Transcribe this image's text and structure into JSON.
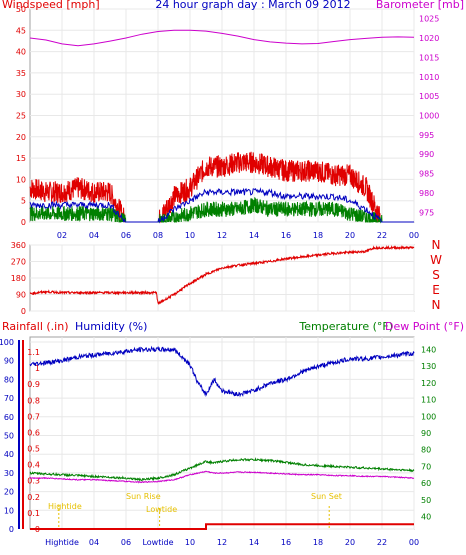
{
  "colors": {
    "wind": "#e00000",
    "wind_avg": "#0000c0",
    "wind_min": "#008000",
    "barometer": "#cc00cc",
    "direction": "#e00000",
    "rain": "#e00000",
    "humidity": "#0000c0",
    "temperature": "#008000",
    "dewpoint": "#cc00cc",
    "tide_text": "#e6c000",
    "axis_text": "#0000c0"
  },
  "chart_data": [
    {
      "type": "line",
      "title": "24 hour graph day : March 09 2012",
      "ylabel_left": "Windspeed [mph]",
      "ylabel_right": "Barometer [mb]",
      "x_ticks": [
        "02",
        "04",
        "06",
        "08",
        "10",
        "12",
        "14",
        "16",
        "18",
        "20",
        "22",
        "00"
      ],
      "y_left_ticks": [
        "0",
        "5",
        "10",
        "15",
        "20",
        "25",
        "30",
        "35",
        "40",
        "45",
        "50"
      ],
      "y_right_ticks": [
        "975",
        "980",
        "985",
        "990",
        "995",
        "1000",
        "1005",
        "1010",
        "1015",
        "1020",
        "1025"
      ],
      "ylim_left": [
        0,
        50
      ],
      "ylim_right": [
        972.5,
        1027.5
      ],
      "x": [
        0,
        1,
        2,
        3,
        4,
        5,
        6,
        7,
        8,
        9,
        10,
        11,
        12,
        13,
        14,
        15,
        16,
        17,
        18,
        19,
        20,
        21,
        22,
        23,
        24
      ],
      "series": [
        {
          "key": "gust",
          "values": [
            8,
            7,
            7,
            8,
            7,
            7,
            0,
            0,
            0,
            6,
            8,
            13,
            13,
            14,
            14,
            13,
            12,
            12,
            12,
            11,
            11,
            8,
            0,
            0,
            0
          ]
        },
        {
          "key": "average",
          "values": [
            4,
            4,
            4,
            4,
            4,
            4,
            0,
            0,
            0,
            3,
            5,
            7,
            7,
            7,
            7,
            7,
            6,
            6,
            6,
            6,
            5,
            3,
            0,
            0,
            0
          ]
        },
        {
          "key": "minimum",
          "values": [
            2,
            2,
            2,
            2,
            2,
            2,
            0,
            0,
            0,
            1,
            2,
            3,
            3,
            3,
            4,
            3,
            3,
            3,
            3,
            3,
            2,
            1,
            0,
            0,
            0
          ]
        },
        {
          "key": "barometer",
          "values": [
            1020,
            1019.5,
            1018.5,
            1018,
            1018.5,
            1019.2,
            1020,
            1021,
            1021.7,
            1022,
            1022,
            1021.8,
            1021.2,
            1020.5,
            1019.6,
            1019,
            1018.7,
            1018.5,
            1018.6,
            1019.1,
            1019.6,
            1019.9,
            1020.2,
            1020.3,
            1020.2
          ]
        }
      ]
    },
    {
      "type": "line",
      "ylabel_right": "N W S E N",
      "y_ticks": [
        "0",
        "90",
        "180",
        "270",
        "360"
      ],
      "ylim": [
        0,
        360
      ],
      "compass": [
        "N",
        "W",
        "S",
        "E",
        "N"
      ],
      "x": [
        0,
        1,
        2,
        3,
        4,
        5,
        6,
        7,
        7.9,
        8,
        9,
        10,
        11,
        12,
        13,
        14,
        15,
        16,
        17,
        18,
        19,
        20,
        21,
        21.5,
        22,
        23,
        24
      ],
      "series": [
        {
          "key": "direction",
          "values": [
            95,
            105,
            100,
            100,
            100,
            100,
            100,
            100,
            100,
            40,
            90,
            150,
            200,
            235,
            250,
            260,
            270,
            285,
            295,
            305,
            315,
            320,
            325,
            345,
            345,
            345,
            345
          ]
        }
      ]
    },
    {
      "type": "line",
      "ylabel_left_1": "Rainfall (.in)",
      "ylabel_left_2": "Humidity (%)",
      "ylabel_right_1": "Temperature (°F)",
      "ylabel_right_2": "Dew Point (°F)",
      "x_ticks": [
        "Hightide",
        "04",
        "06",
        "Lowtide",
        "10",
        "12",
        "14",
        "16",
        "18",
        "20",
        "22",
        "00"
      ],
      "humidity_ticks": [
        "0",
        "10",
        "20",
        "30",
        "40",
        "50",
        "60",
        "70",
        "80",
        "90",
        "100"
      ],
      "rain_ticks": [
        "0",
        "0.1",
        "0.2",
        "0.3",
        "0.4",
        "0.5",
        "0.6",
        "0.7",
        "0.8",
        "0.9",
        "1",
        "1.1"
      ],
      "temp_ticks": [
        "40",
        "50",
        "60",
        "70",
        "80",
        "90",
        "100",
        "110",
        "120",
        "130",
        "140"
      ],
      "ylim_humidity": [
        0,
        100
      ],
      "ylim_temperature": [
        32.5,
        147.5
      ],
      "annotations": [
        "Hightide",
        "Sun Rise",
        "Lowtide",
        "Sun Set"
      ],
      "x": [
        0,
        1,
        2,
        3,
        4,
        5,
        6,
        7,
        8,
        9,
        10,
        10.5,
        11,
        11.5,
        12,
        13,
        14,
        15,
        16,
        17,
        18,
        19,
        20,
        21,
        22,
        23,
        24
      ],
      "series": [
        {
          "key": "humidity",
          "values": [
            88,
            89,
            90,
            92,
            93,
            94,
            95,
            96,
            96,
            96,
            88,
            78,
            72,
            80,
            74,
            72,
            74,
            78,
            80,
            84,
            87,
            89,
            91,
            91,
            92,
            93,
            94
          ]
        },
        {
          "key": "temperature",
          "values": [
            66,
            65.5,
            65,
            64.5,
            64,
            63.5,
            63,
            62,
            63,
            65,
            69,
            71,
            73,
            72,
            73,
            74,
            74,
            73.5,
            72.5,
            71,
            70.5,
            70,
            69.5,
            69,
            68.5,
            68,
            67.5
          ]
        },
        {
          "key": "dewpoint",
          "values": [
            63,
            63,
            62.5,
            62,
            62,
            61.5,
            61,
            60.5,
            61,
            62,
            65,
            66,
            67,
            66,
            66,
            66.5,
            66.5,
            66,
            65.5,
            65,
            65,
            64.5,
            64.5,
            64,
            64,
            63.5,
            63
          ]
        },
        {
          "key": "rainfall",
          "values": [
            0,
            0,
            0,
            0,
            0,
            0,
            0,
            0,
            0,
            0,
            0,
            0,
            0.03,
            0.03,
            0.03,
            0.03,
            0.03,
            0.03,
            0.03,
            0.03,
            0.03,
            0.03,
            0.03,
            0.03,
            0.03,
            0.03,
            0.03
          ]
        }
      ]
    }
  ]
}
